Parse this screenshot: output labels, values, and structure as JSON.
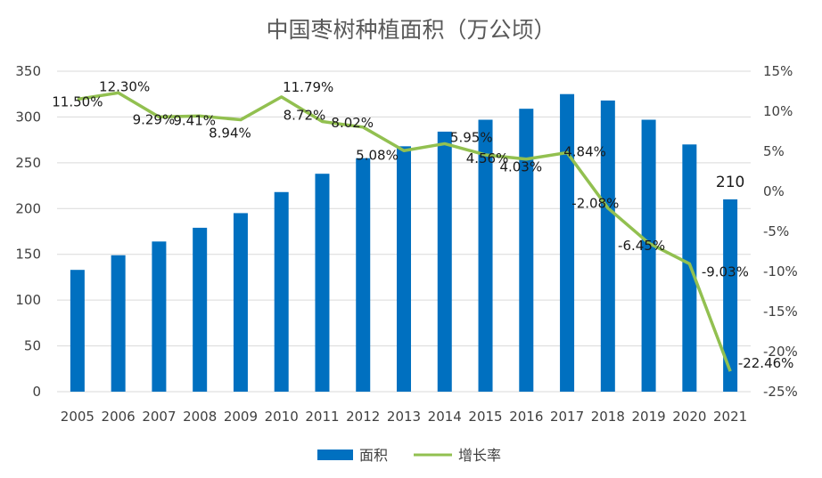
{
  "chart_data": {
    "type": "bar",
    "title": "中国枣树种植面积（万公顷）",
    "categories": [
      "2005",
      "2006",
      "2007",
      "2008",
      "2009",
      "2010",
      "2011",
      "2012",
      "2013",
      "2014",
      "2015",
      "2016",
      "2017",
      "2018",
      "2019",
      "2020",
      "2021"
    ],
    "series": [
      {
        "name": "面积",
        "type": "bar",
        "axis": "left",
        "color": "#0070C0",
        "values": [
          133,
          149,
          164,
          179,
          195,
          218,
          238,
          255,
          268,
          284,
          297,
          309,
          325,
          318,
          297,
          270,
          210
        ],
        "labels": [
          "",
          "",
          "",
          "",
          "",
          "",
          "",
          "",
          "",
          "",
          "",
          "",
          "",
          "",
          "",
          "",
          "210"
        ]
      },
      {
        "name": "增长率",
        "type": "line",
        "axis": "right",
        "color": "#92C050",
        "values": [
          11.5,
          12.3,
          9.29,
          9.41,
          8.94,
          11.79,
          8.72,
          8.02,
          5.08,
          5.95,
          4.56,
          4.03,
          4.84,
          -2.08,
          -6.45,
          -9.03,
          -22.46
        ],
        "labels": [
          "11.50%",
          "12.30%",
          "9.29%",
          "9.41%",
          "8.94%",
          "11.79%",
          "8.72%",
          "8.02%",
          "5.08%",
          "5.95%",
          "4.56%",
          "4.03%",
          "4.84%",
          "-2.08%",
          "-6.45%",
          "-9.03%",
          "-22.46%"
        ]
      }
    ],
    "y_left": {
      "min": 0,
      "max": 350,
      "step": 50,
      "ticks": [
        "0",
        "50",
        "100",
        "150",
        "200",
        "250",
        "300",
        "350"
      ]
    },
    "y_right": {
      "min": -25,
      "max": 15,
      "step": 5,
      "ticks": [
        "-25%",
        "-20%",
        "-15%",
        "-10%",
        "-5%",
        "0%",
        "5%",
        "10%",
        "15%"
      ]
    },
    "gridlines": true,
    "legend_position": "bottom"
  }
}
